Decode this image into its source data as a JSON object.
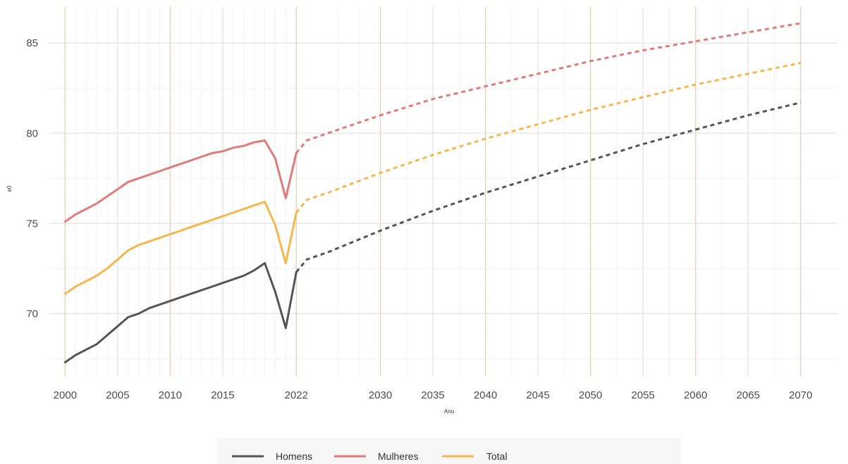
{
  "chart_data": {
    "type": "line",
    "xlabel": "Ano",
    "ylabel": "e0",
    "xlim": [
      1998.5,
      2073.5
    ],
    "ylim": [
      66.5,
      87
    ],
    "x_ticks": [
      2000,
      2005,
      2010,
      2015,
      2022,
      2030,
      2035,
      2040,
      2045,
      2050,
      2055,
      2060,
      2065,
      2070
    ],
    "y_ticks": [
      70,
      75,
      80,
      85
    ],
    "x_minor_ticks": [
      2001,
      2002,
      2003,
      2004,
      2006,
      2007,
      2008,
      2009,
      2011,
      2012,
      2013,
      2014,
      2016,
      2017,
      2018,
      2019,
      2020,
      2021,
      2026,
      2028,
      2032.5,
      2037.5,
      2042.5,
      2047.5,
      2052.5,
      2057.5,
      2062.5,
      2067.5
    ],
    "y_minor_ticks": [
      67.5,
      72.5,
      77.5,
      82.5
    ],
    "vlines": [
      2000,
      2010,
      2022,
      2030,
      2040,
      2050,
      2060,
      2070
    ],
    "grid": true,
    "legend": {
      "position": "bottom",
      "entries": [
        "Homens",
        "Mulheres",
        "Total"
      ]
    },
    "colors": {
      "Homens": "#555555",
      "Mulheres": "#e07b7b",
      "Total": "#f5b74e",
      "vline": "#e8b78f"
    },
    "series": [
      {
        "name": "Homens",
        "observed": {
          "x": [
            2000,
            2001,
            2002,
            2003,
            2004,
            2005,
            2006,
            2007,
            2008,
            2009,
            2010,
            2011,
            2012,
            2013,
            2014,
            2015,
            2016,
            2017,
            2018,
            2019,
            2020,
            2021,
            2022
          ],
          "y": [
            67.3,
            67.7,
            68.0,
            68.3,
            68.8,
            69.3,
            69.8,
            70.0,
            70.3,
            70.5,
            70.7,
            70.9,
            71.1,
            71.3,
            71.5,
            71.7,
            71.9,
            72.1,
            72.4,
            72.8,
            71.2,
            69.2,
            72.3
          ]
        },
        "projected": {
          "x": [
            2022,
            2023,
            2025,
            2030,
            2035,
            2040,
            2045,
            2050,
            2055,
            2060,
            2065,
            2070
          ],
          "y": [
            72.3,
            73.0,
            73.4,
            74.6,
            75.7,
            76.7,
            77.6,
            78.5,
            79.4,
            80.2,
            81.0,
            81.7
          ]
        }
      },
      {
        "name": "Mulheres",
        "observed": {
          "x": [
            2000,
            2001,
            2002,
            2003,
            2004,
            2005,
            2006,
            2007,
            2008,
            2009,
            2010,
            2011,
            2012,
            2013,
            2014,
            2015,
            2016,
            2017,
            2018,
            2019,
            2020,
            2021,
            2022
          ],
          "y": [
            75.1,
            75.5,
            75.8,
            76.1,
            76.5,
            76.9,
            77.3,
            77.5,
            77.7,
            77.9,
            78.1,
            78.3,
            78.5,
            78.7,
            78.9,
            79.0,
            79.2,
            79.3,
            79.5,
            79.6,
            78.6,
            76.4,
            78.9
          ]
        },
        "projected": {
          "x": [
            2022,
            2023,
            2025,
            2030,
            2035,
            2040,
            2045,
            2050,
            2055,
            2060,
            2065,
            2070
          ],
          "y": [
            78.9,
            79.6,
            80.0,
            81.0,
            81.9,
            82.6,
            83.3,
            84.0,
            84.6,
            85.1,
            85.6,
            86.1
          ]
        }
      },
      {
        "name": "Total",
        "observed": {
          "x": [
            2000,
            2001,
            2002,
            2003,
            2004,
            2005,
            2006,
            2007,
            2008,
            2009,
            2010,
            2011,
            2012,
            2013,
            2014,
            2015,
            2016,
            2017,
            2018,
            2019,
            2020,
            2021,
            2022
          ],
          "y": [
            71.1,
            71.5,
            71.8,
            72.1,
            72.5,
            73.0,
            73.5,
            73.8,
            74.0,
            74.2,
            74.4,
            74.6,
            74.8,
            75.0,
            75.2,
            75.4,
            75.6,
            75.8,
            76.0,
            76.2,
            74.9,
            72.8,
            75.6
          ]
        },
        "projected": {
          "x": [
            2022,
            2023,
            2025,
            2030,
            2035,
            2040,
            2045,
            2050,
            2055,
            2060,
            2065,
            2070
          ],
          "y": [
            75.6,
            76.3,
            76.7,
            77.8,
            78.8,
            79.7,
            80.5,
            81.3,
            82.0,
            82.7,
            83.3,
            83.9
          ]
        }
      }
    ]
  }
}
